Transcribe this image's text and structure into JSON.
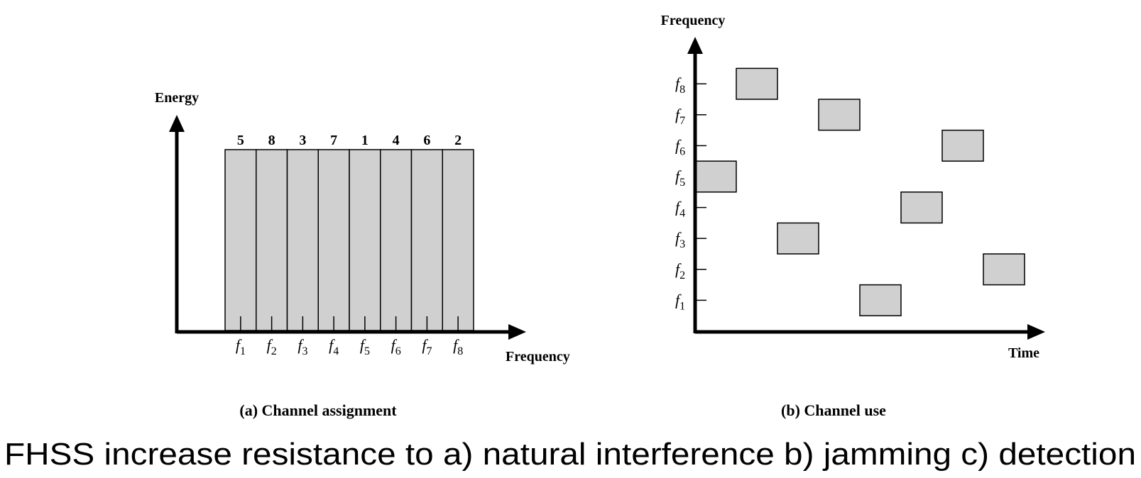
{
  "panel_a": {
    "y_axis_label": "Energy",
    "x_axis_label": "Frequency",
    "caption": "(a) Channel assignment",
    "channel_numbers": [
      "5",
      "8",
      "3",
      "7",
      "1",
      "4",
      "6",
      "2"
    ],
    "frequency_labels": [
      {
        "base": "f",
        "sub": "1"
      },
      {
        "base": "f",
        "sub": "2"
      },
      {
        "base": "f",
        "sub": "3"
      },
      {
        "base": "f",
        "sub": "4"
      },
      {
        "base": "f",
        "sub": "5"
      },
      {
        "base": "f",
        "sub": "6"
      },
      {
        "base": "f",
        "sub": "7"
      },
      {
        "base": "f",
        "sub": "8"
      }
    ]
  },
  "panel_b": {
    "y_axis_label": "Frequency",
    "x_axis_label": "Time",
    "caption": "(b) Channel use",
    "frequency_labels": [
      {
        "base": "f",
        "sub": "1"
      },
      {
        "base": "f",
        "sub": "2"
      },
      {
        "base": "f",
        "sub": "3"
      },
      {
        "base": "f",
        "sub": "4"
      },
      {
        "base": "f",
        "sub": "5"
      },
      {
        "base": "f",
        "sub": "6"
      },
      {
        "base": "f",
        "sub": "7"
      },
      {
        "base": "f",
        "sub": "8"
      }
    ],
    "hop_sequence": [
      5,
      8,
      3,
      7,
      1,
      4,
      6,
      2
    ]
  },
  "footer_text": "FHSS increase resistance to a) natural interference b) jamming c) detection",
  "colors": {
    "block_fill": "#d0d0d0",
    "stroke": "#000000"
  }
}
